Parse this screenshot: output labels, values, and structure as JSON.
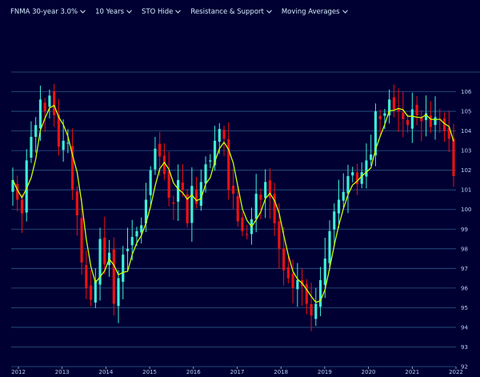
{
  "toolbar": {
    "instrument": "FNMA 30-year 3.0%",
    "period": "10 Years",
    "sto": "STO Hide",
    "sr": "Resistance & Support",
    "ma": "Moving Averages"
  },
  "colors": {
    "background": "#000033",
    "grid": "#2a5a8a",
    "up": "#3ff0d8",
    "down": "#ee1111",
    "moving_average": "#ccff00"
  },
  "chart_data": {
    "type": "candlestick",
    "title": "FNMA 30-year 3.0%",
    "x_ticks": [
      "2012",
      "2013",
      "2014",
      "2015",
      "2016",
      "2017",
      "2018",
      "2019",
      "2020",
      "2021",
      "2022"
    ],
    "y_ticks": [
      92,
      93,
      94,
      95,
      96,
      97,
      98,
      99,
      100,
      101,
      102,
      103,
      104,
      105,
      106
    ],
    "ylim": [
      92,
      107
    ],
    "grid": "horizontal",
    "moving_average_shown": true,
    "series_closes": [
      101.5,
      100.5,
      99.8,
      102.5,
      103.7,
      104.3,
      105.6,
      105.0,
      105.8,
      104.8,
      103.2,
      103.5,
      103.4,
      101.0,
      99.7,
      97.3,
      96.0,
      95.4,
      96.4,
      98.5,
      97.2,
      97.8,
      95.2,
      96.5,
      97.7,
      98.0,
      98.6,
      98.9,
      99.2,
      100.5,
      102.0,
      103.1,
      102.7,
      101.8,
      100.6,
      100.3,
      101.5,
      101.0,
      99.3,
      101.2,
      100.3,
      101.4,
      102.3,
      102.5,
      103.5,
      104.1,
      103.6,
      101.0,
      100.8,
      99.4,
      98.9,
      98.7,
      99.5,
      100.8,
      100.5,
      101.4,
      100.6,
      99.3,
      98.0,
      96.9,
      96.5,
      96.0,
      96.4,
      96.1,
      95.2,
      94.6,
      95.2,
      96.4,
      97.5,
      98.9,
      99.9,
      100.5,
      100.9,
      101.7,
      101.9,
      101.3,
      101.9,
      102.5,
      102.8,
      105.0,
      104.6,
      104.9,
      105.6,
      105.1,
      105.0,
      104.6,
      104.3,
      105.1,
      104.8,
      104.5,
      104.9,
      104.2,
      104.7,
      104.6,
      104.0,
      103.6,
      101.7
    ]
  }
}
